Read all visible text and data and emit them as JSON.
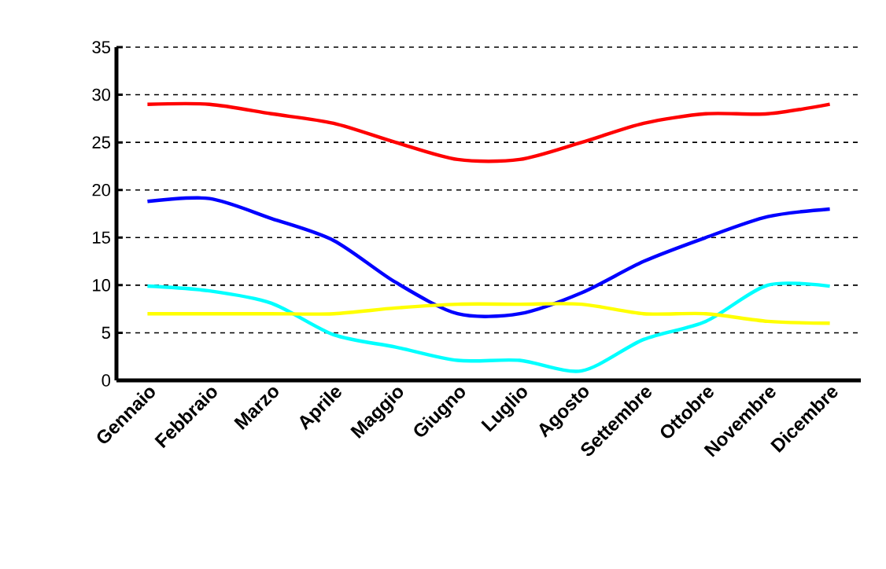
{
  "chart_data": {
    "type": "line",
    "categories": [
      "Gennaio",
      "Febbraio",
      "Marzo",
      "Aprile",
      "Maggio",
      "Giugno",
      "Luglio",
      "Agosto",
      "Settembre",
      "Ottobre",
      "Novembre",
      "Dicembre"
    ],
    "series": [
      {
        "color": "#ff0000",
        "values": [
          29,
          29,
          28,
          27,
          25,
          23.2,
          23.2,
          25,
          27,
          28,
          28,
          29
        ]
      },
      {
        "color": "#0000ff",
        "values": [
          18.8,
          19.1,
          17,
          14.7,
          10.3,
          7,
          7,
          9.2,
          12.5,
          15,
          17.2,
          18
        ]
      },
      {
        "color": "#00ffff",
        "values": [
          9.9,
          9.4,
          8.1,
          4.8,
          3.5,
          2.1,
          2.1,
          1,
          4.3,
          6.2,
          10,
          9.9
        ]
      },
      {
        "color": "#ffff00",
        "values": [
          7,
          7,
          7,
          7,
          7.6,
          8,
          8,
          8,
          7,
          7,
          6.2,
          6
        ]
      }
    ],
    "ylim": [
      0,
      35
    ],
    "yticks": [
      0,
      5,
      10,
      15,
      20,
      25,
      30,
      35
    ],
    "grid": "y",
    "line_style": "solid",
    "marker": "none"
  }
}
